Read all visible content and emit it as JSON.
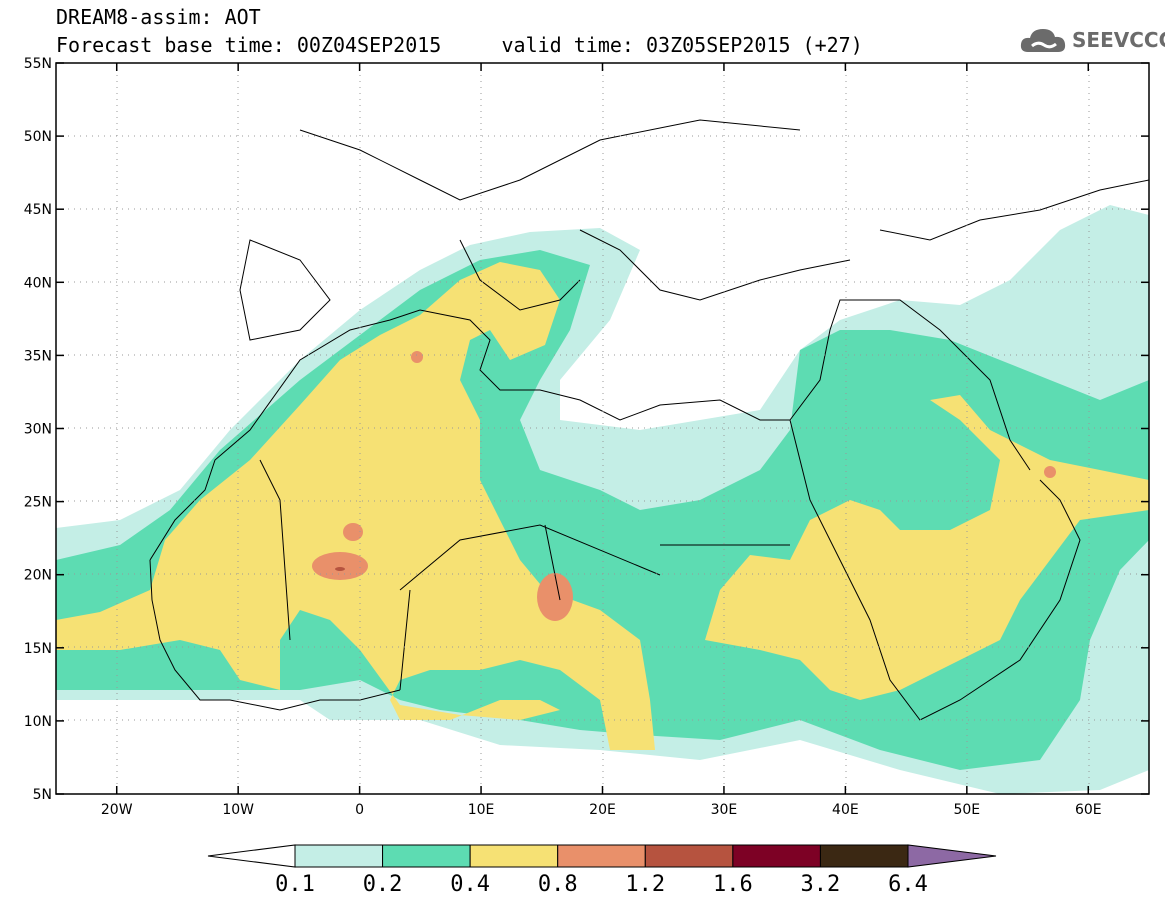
{
  "header": {
    "line1": "DREAM8-assim: AOT",
    "line2": "Forecast base time: 00Z04SEP2015     valid time: 03Z05SEP2015 (+27)"
  },
  "logo": {
    "text": "SEEVCCC",
    "icon": "cloud-icon"
  },
  "map": {
    "lon_range": [
      -25,
      65
    ],
    "lat_range": [
      5,
      55
    ],
    "lat_ticks": [
      "55N",
      "50N",
      "45N",
      "40N",
      "35N",
      "30N",
      "25N",
      "20N",
      "15N",
      "10N",
      "5N"
    ],
    "lon_ticks": [
      "20W",
      "10W",
      "0",
      "10E",
      "20E",
      "30E",
      "40E",
      "50E",
      "60E"
    ],
    "gridlines": "dotted"
  },
  "colorbar": {
    "labels": [
      "0.1",
      "0.2",
      "0.4",
      "0.8",
      "1.2",
      "1.6",
      "3.2",
      "6.4"
    ],
    "colors": [
      "#ffffff",
      "#c4eee6",
      "#5ddcb2",
      "#f6e174",
      "#e9906a",
      "#b6533f",
      "#7d0125",
      "#3b2813",
      "#8d69a4"
    ]
  },
  "field_colors": {
    "level_0.1": "#c4eee6",
    "level_0.2": "#5ddcb2",
    "level_0.4": "#f6e174",
    "level_0.8": "#e9906a",
    "level_1.2": "#b6533f"
  }
}
